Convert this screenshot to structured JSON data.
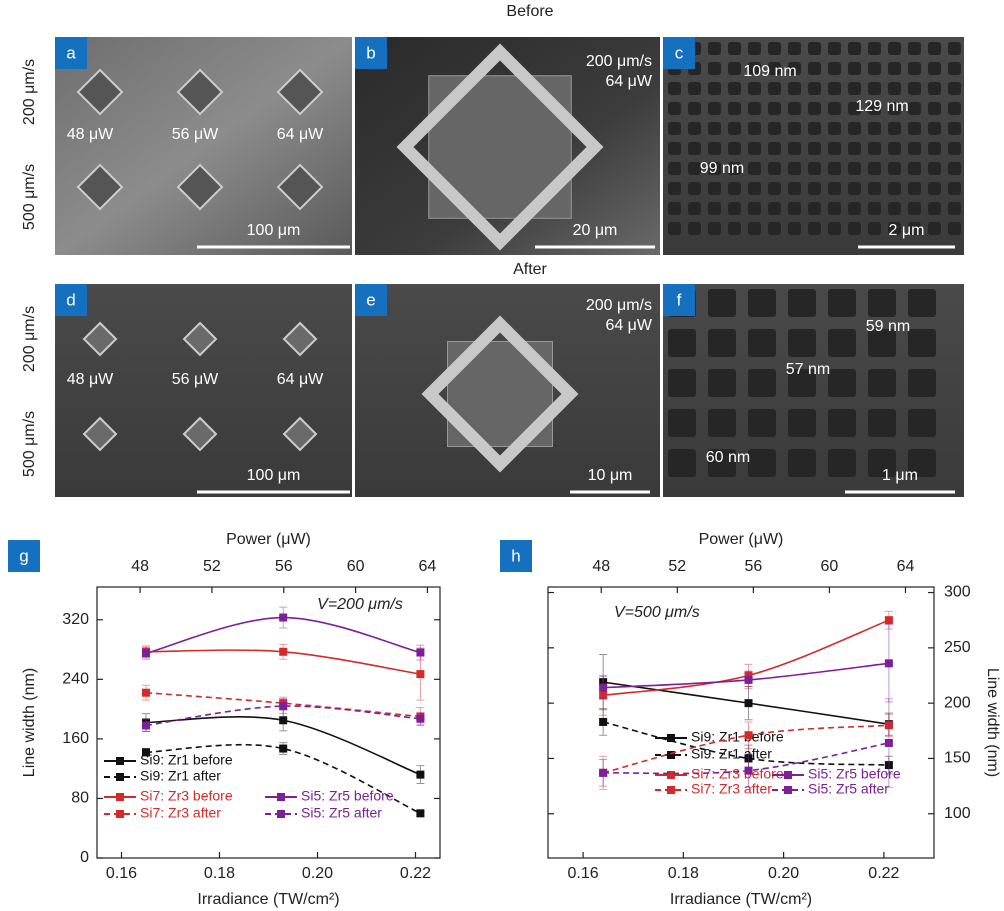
{
  "figure": {
    "before_title": "Before",
    "after_title": "After"
  },
  "rows": [
    {
      "speed_labels": [
        "200 μm/s",
        "500 μm/s"
      ]
    },
    {
      "speed_labels": [
        "200 μm/s",
        "500 μm/s"
      ]
    }
  ],
  "panels": [
    {
      "label": "a",
      "annotations": [
        "48 μW",
        "56 μW",
        "64 μW"
      ],
      "scale_bar": "100 μm"
    },
    {
      "label": "b",
      "annotations": [
        "200 μm/s",
        "64 μW"
      ],
      "scale_bar": "20 μm"
    },
    {
      "label": "c",
      "annotations": [
        "109 nm",
        "129 nm",
        "99 nm"
      ],
      "scale_bar": "2 μm"
    },
    {
      "label": "d",
      "annotations": [
        "48 μW",
        "56 μW",
        "64 μW"
      ],
      "scale_bar": "100 μm"
    },
    {
      "label": "e",
      "annotations": [
        "200 μm/s",
        "64 μW"
      ],
      "scale_bar": "10 μm"
    },
    {
      "label": "f",
      "annotations": [
        "59 nm",
        "57 nm",
        "60 nm"
      ],
      "scale_bar": "1 μm"
    }
  ],
  "chart_data": [
    {
      "type": "line",
      "panel_label": "g",
      "annotation": "V=200 μm/s",
      "xlabel": "Irradiance (TW/cm²)",
      "ylabel": "Line width (nm)",
      "x2label": "Power (μW)",
      "x": [
        0.165,
        0.193,
        0.221
      ],
      "xlim": [
        0.155,
        0.225
      ],
      "xticks": [
        0.16,
        0.18,
        {
          "value": 0.2,
          "label": "0.20"
        },
        0.22
      ],
      "x2lim": [
        45.6,
        64.7
      ],
      "x2ticks": [
        48,
        52,
        56,
        60,
        64
      ],
      "ylim": [
        0,
        364
      ],
      "yticks": [
        0,
        80,
        160,
        240,
        320
      ],
      "y_axis_side": "left",
      "series": [
        {
          "name": "Si9: Zr1 before",
          "color": "#111111",
          "dashed": false,
          "values": [
            182,
            185,
            112
          ],
          "errors": [
            12,
            14,
            12
          ]
        },
        {
          "name": "Si9: Zr1 after",
          "color": "#111111",
          "dashed": true,
          "values": [
            142,
            147,
            60
          ],
          "errors": [
            5,
            8,
            4
          ]
        },
        {
          "name": "Si7: Zr3 before",
          "color": "#d42a2a",
          "dashed": false,
          "values": [
            277,
            277,
            247
          ],
          "errors": [
            8,
            10,
            35
          ]
        },
        {
          "name": "Si7: Zr3 after",
          "color": "#d42a2a",
          "dashed": true,
          "values": [
            222,
            208,
            190
          ],
          "errors": [
            10,
            8,
            12
          ]
        },
        {
          "name": "Si5: Zr5 before",
          "color": "#7d1f96",
          "dashed": false,
          "values": [
            275,
            323,
            276
          ],
          "errors": [
            8,
            14,
            10
          ]
        },
        {
          "name": "Si5: Zr5 after",
          "color": "#7d1f96",
          "dashed": true,
          "values": [
            178,
            204,
            187
          ],
          "errors": [
            8,
            10,
            8
          ]
        }
      ]
    },
    {
      "type": "line",
      "panel_label": "h",
      "annotation": "V=500 μm/s",
      "xlabel": "Irradiance (TW/cm²)",
      "ylabel": "Line width (nm)",
      "x2label": "Power (μW)",
      "x": [
        0.164,
        0.193,
        0.221
      ],
      "xlim": [
        0.153,
        0.23
      ],
      "xticks": [
        0.16,
        0.18,
        {
          "value": 0.2,
          "label": "0.20"
        },
        0.22
      ],
      "x2lim": [
        45.2,
        65.5
      ],
      "x2ticks": [
        48,
        52,
        56,
        60,
        64
      ],
      "ylim": [
        60,
        305
      ],
      "yticks": [
        100,
        150,
        200,
        250,
        300
      ],
      "y_axis_side": "right",
      "series": [
        {
          "name": "Si9: Zr1 before",
          "color": "#111111",
          "dashed": false,
          "values": [
            219,
            200,
            181
          ],
          "errors": [
            25,
            15,
            10
          ]
        },
        {
          "name": "Si9: Zr1 after",
          "color": "#111111",
          "dashed": true,
          "values": [
            183,
            150,
            144
          ],
          "errors": [
            12,
            12,
            8
          ]
        },
        {
          "name": "Si7: Zr3 before",
          "color": "#d42a2a",
          "dashed": false,
          "values": [
            207,
            225,
            275
          ],
          "errors": [
            18,
            10,
            8
          ]
        },
        {
          "name": "Si7: Zr3 after",
          "color": "#d42a2a",
          "dashed": true,
          "values": [
            137,
            171,
            180
          ],
          "errors": [
            15,
            12,
            10
          ]
        },
        {
          "name": "Si5: Zr5 before",
          "color": "#7d1f96",
          "dashed": false,
          "values": [
            214,
            221,
            236
          ],
          "errors": [
            10,
            8,
            35
          ]
        },
        {
          "name": "Si5: Zr5 after",
          "color": "#7d1f96",
          "dashed": true,
          "values": [
            137,
            139,
            164
          ],
          "errors": [
            12,
            15,
            40
          ]
        }
      ]
    }
  ]
}
